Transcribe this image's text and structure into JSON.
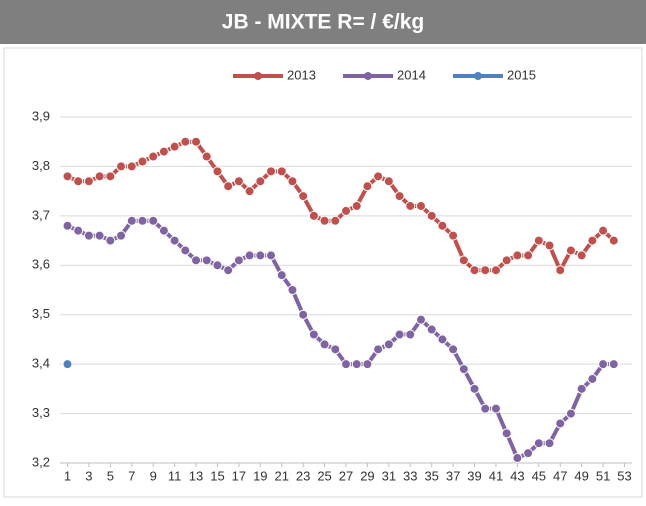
{
  "chart_data": {
    "type": "line",
    "title": "JB - MIXTE R= /  €/kg",
    "x": [
      1,
      2,
      3,
      4,
      5,
      6,
      7,
      8,
      9,
      10,
      11,
      12,
      13,
      14,
      15,
      16,
      17,
      18,
      19,
      20,
      21,
      22,
      23,
      24,
      25,
      26,
      27,
      28,
      29,
      30,
      31,
      32,
      33,
      34,
      35,
      36,
      37,
      38,
      39,
      40,
      41,
      42,
      43,
      44,
      45,
      46,
      47,
      48,
      49,
      50,
      51,
      52
    ],
    "series": [
      {
        "name": "2013",
        "color": "#c0504d",
        "values": [
          3.78,
          3.77,
          3.77,
          3.78,
          3.78,
          3.8,
          3.8,
          3.81,
          3.82,
          3.83,
          3.84,
          3.85,
          3.85,
          3.82,
          3.79,
          3.76,
          3.77,
          3.75,
          3.77,
          3.79,
          3.79,
          3.77,
          3.74,
          3.7,
          3.69,
          3.69,
          3.71,
          3.72,
          3.76,
          3.78,
          3.77,
          3.74,
          3.72,
          3.72,
          3.7,
          3.68,
          3.66,
          3.61,
          3.59,
          3.59,
          3.59,
          3.61,
          3.62,
          3.62,
          3.65,
          3.64,
          3.59,
          3.63,
          3.62,
          3.65,
          3.67,
          3.65
        ]
      },
      {
        "name": "2014",
        "color": "#8064a2",
        "values": [
          3.68,
          3.67,
          3.66,
          3.66,
          3.65,
          3.66,
          3.69,
          3.69,
          3.69,
          3.67,
          3.65,
          3.63,
          3.61,
          3.61,
          3.6,
          3.59,
          3.61,
          3.62,
          3.62,
          3.62,
          3.58,
          3.55,
          3.5,
          3.46,
          3.44,
          3.43,
          3.4,
          3.4,
          3.4,
          3.43,
          3.44,
          3.46,
          3.46,
          3.49,
          3.47,
          3.45,
          3.43,
          3.39,
          3.35,
          3.31,
          3.31,
          3.26,
          3.21,
          3.22,
          3.24,
          3.24,
          3.28,
          3.3,
          3.35,
          3.37,
          3.4,
          3.4
        ]
      },
      {
        "name": "2015",
        "color": "#4f81bd",
        "values": [
          3.4,
          null,
          null,
          null,
          null,
          null,
          null,
          null,
          null,
          null,
          null,
          null,
          null,
          null,
          null,
          null,
          null,
          null,
          null,
          null,
          null,
          null,
          null,
          null,
          null,
          null,
          null,
          null,
          null,
          null,
          null,
          null,
          null,
          null,
          null,
          null,
          null,
          null,
          null,
          null,
          null,
          null,
          null,
          null,
          null,
          null,
          null,
          null,
          null,
          null,
          null,
          null
        ]
      }
    ],
    "xlim": [
      0.3,
      53.7
    ],
    "xticks": [
      1,
      3,
      5,
      7,
      9,
      11,
      13,
      15,
      17,
      19,
      21,
      23,
      25,
      27,
      29,
      31,
      33,
      35,
      37,
      39,
      41,
      43,
      45,
      47,
      49,
      51,
      53
    ],
    "ylim": [
      3.2,
      3.9
    ],
    "yticks": [
      {
        "value": 3.2,
        "label": "3,2"
      },
      {
        "value": 3.3,
        "label": "3,3"
      },
      {
        "value": 3.4,
        "label": "3,4"
      },
      {
        "value": 3.5,
        "label": "3,5"
      },
      {
        "value": 3.6,
        "label": "3,6"
      },
      {
        "value": 3.7,
        "label": "3,7"
      },
      {
        "value": 3.8,
        "label": "3,8"
      },
      {
        "value": 3.9,
        "label": "3,9"
      }
    ],
    "grid": true
  }
}
